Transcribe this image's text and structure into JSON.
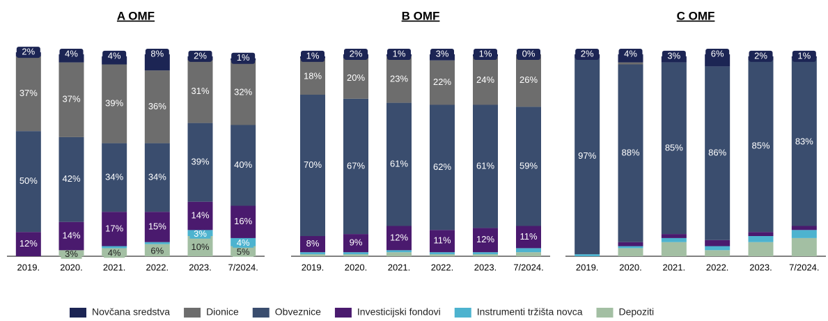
{
  "legend": [
    {
      "name": "Novčana sredstva",
      "color": "#1c2554"
    },
    {
      "name": "Dionice",
      "color": "#6d6d6d"
    },
    {
      "name": "Obveznice",
      "color": "#3a4d6e"
    },
    {
      "name": "Investicijski fondovi",
      "color": "#4a1a6e"
    },
    {
      "name": "Instrumenti tržišta novca",
      "color": "#4db3cf"
    },
    {
      "name": "Depoziti",
      "color": "#a3bfa3"
    }
  ],
  "chart_data": [
    {
      "type": "bar",
      "stacked": true,
      "title": "A OMF",
      "ylim": [
        0,
        100
      ],
      "categories": [
        "2019.",
        "2020.",
        "2021.",
        "2022.",
        "2023.",
        "7/2024."
      ],
      "series": [
        {
          "values": [
            2,
            4,
            4,
            8,
            2,
            1
          ],
          "value_labels": [
            "2%",
            "4%",
            "4%",
            "8%",
            "2%",
            "1%"
          ]
        },
        {
          "values": [
            37,
            37,
            39,
            36,
            31,
            32
          ],
          "value_labels": [
            "37%",
            "37%",
            "39%",
            "36%",
            "31%",
            "32%"
          ]
        },
        {
          "values": [
            50,
            42,
            34,
            34,
            39,
            40
          ],
          "value_labels": [
            "50%",
            "42%",
            "34%",
            "34%",
            "39%",
            "40%"
          ]
        },
        {
          "values": [
            12,
            14,
            17,
            15,
            14,
            16
          ],
          "value_labels": [
            "12%",
            "14%",
            "17%",
            "15%",
            "14%",
            "16%"
          ]
        },
        {
          "values": [
            0,
            0,
            1,
            1,
            3,
            4
          ],
          "value_labels": [
            null,
            null,
            null,
            null,
            "3%",
            "4%"
          ]
        },
        {
          "values": [
            0,
            3,
            4,
            6,
            10,
            5
          ],
          "value_labels": [
            null,
            "3%",
            "4%",
            "6%",
            "10%",
            "5%"
          ]
        }
      ]
    },
    {
      "type": "bar",
      "stacked": true,
      "title": "B OMF",
      "ylim": [
        0,
        100
      ],
      "categories": [
        "2019.",
        "2020.",
        "2021.",
        "2022.",
        "2023.",
        "7/2024."
      ],
      "series": [
        {
          "values": [
            1,
            2,
            1,
            3,
            1,
            0
          ],
          "value_labels": [
            "1%",
            "2%",
            "1%",
            "3%",
            "1%",
            "0%"
          ]
        },
        {
          "values": [
            18,
            20,
            23,
            22,
            24,
            26
          ],
          "value_labels": [
            "18%",
            "20%",
            "23%",
            "22%",
            "24%",
            "26%"
          ]
        },
        {
          "values": [
            70,
            67,
            61,
            62,
            61,
            59
          ],
          "value_labels": [
            "70%",
            "67%",
            "61%",
            "62%",
            "61%",
            "59%"
          ]
        },
        {
          "values": [
            8,
            9,
            12,
            11,
            12,
            11
          ],
          "value_labels": [
            "8%",
            "9%",
            "12%",
            "11%",
            "12%",
            "11%"
          ]
        },
        {
          "values": [
            1,
            1,
            1,
            1,
            1,
            2
          ],
          "value_labels": [
            null,
            null,
            null,
            null,
            null,
            null
          ]
        },
        {
          "values": [
            1,
            1,
            2,
            1,
            1,
            2
          ],
          "value_labels": [
            null,
            null,
            null,
            null,
            null,
            null
          ]
        }
      ]
    },
    {
      "type": "bar",
      "stacked": true,
      "title": "C OMF",
      "ylim": [
        0,
        100
      ],
      "categories": [
        "2019.",
        "2020.",
        "2021.",
        "2022.",
        "2023.",
        "7/2024."
      ],
      "series": [
        {
          "values": [
            2,
            4,
            3,
            6,
            2,
            1
          ],
          "value_labels": [
            "2%",
            "4%",
            "3%",
            "6%",
            "2%",
            "1%"
          ]
        },
        {
          "values": [
            0,
            1,
            0,
            0,
            0,
            0
          ],
          "value_labels": [
            null,
            null,
            null,
            null,
            null,
            null
          ]
        },
        {
          "values": [
            97,
            88,
            85,
            86,
            85,
            83
          ],
          "value_labels": [
            "97%",
            "88%",
            "85%",
            "86%",
            "85%",
            "83%"
          ]
        },
        {
          "values": [
            0,
            2,
            2,
            3,
            2,
            2
          ],
          "value_labels": [
            null,
            null,
            null,
            null,
            null,
            null
          ]
        },
        {
          "values": [
            1,
            1,
            2,
            2,
            3,
            4
          ],
          "value_labels": [
            null,
            null,
            null,
            null,
            null,
            null
          ]
        },
        {
          "values": [
            0,
            4,
            7,
            3,
            7,
            9
          ],
          "value_labels": [
            null,
            null,
            null,
            null,
            null,
            null
          ]
        }
      ]
    }
  ]
}
